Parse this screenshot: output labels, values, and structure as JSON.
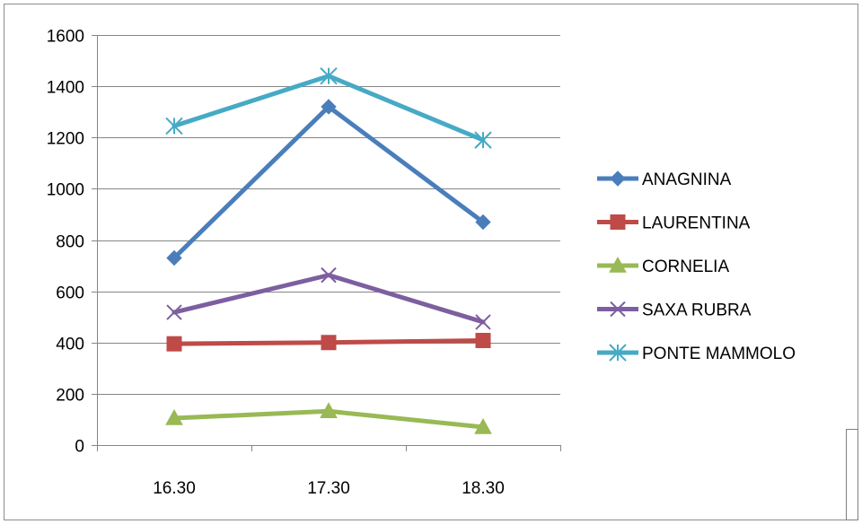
{
  "chart_data": {
    "type": "line",
    "title": "",
    "xlabel": "",
    "ylabel": "",
    "categories": [
      "16.30",
      "17.30",
      "18.30"
    ],
    "ylim": [
      0,
      1600
    ],
    "yticks": [
      0,
      200,
      400,
      600,
      800,
      1000,
      1200,
      1400,
      1600
    ],
    "grid": "horizontal",
    "legend_position": "right",
    "series": [
      {
        "name": "ANAGNINA",
        "values": [
          730,
          1320,
          870
        ],
        "color": "#4a7ebb",
        "marker": "diamond"
      },
      {
        "name": "LAURENTINA",
        "values": [
          395,
          400,
          408
        ],
        "color": "#be4b48",
        "marker": "square"
      },
      {
        "name": "CORNELIA",
        "values": [
          105,
          132,
          70
        ],
        "color": "#98b954",
        "marker": "triangle"
      },
      {
        "name": "SAXA RUBRA",
        "values": [
          518,
          663,
          480
        ],
        "color": "#7d5fa0",
        "marker": "x"
      },
      {
        "name": "PONTE MAMMOLO",
        "values": [
          1245,
          1440,
          1190
        ],
        "color": "#46aac5",
        "marker": "star"
      }
    ]
  }
}
